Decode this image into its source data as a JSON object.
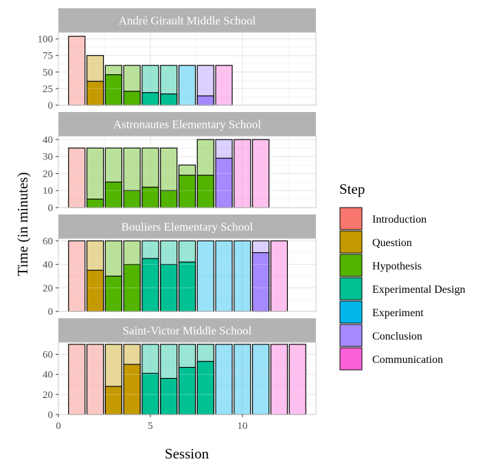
{
  "chart_data": {
    "type": "bar",
    "xlabel": "Session",
    "ylabel": "Time (in minutes)",
    "xlim": [
      0,
      14
    ],
    "x_ticks": [
      0,
      5,
      10
    ],
    "grid": true,
    "legend_title": "Step",
    "legend_position": "right",
    "steps": [
      {
        "name": "Introduction",
        "color": "#F8766D"
      },
      {
        "name": "Question",
        "color": "#C49A00"
      },
      {
        "name": "Hypothesis",
        "color": "#53B400"
      },
      {
        "name": "Experimental Design",
        "color": "#00C094"
      },
      {
        "name": "Experiment",
        "color": "#00B6EB"
      },
      {
        "name": "Conclusion",
        "color": "#A58AFF"
      },
      {
        "name": "Communication",
        "color": "#FB61D7"
      }
    ],
    "panels": [
      {
        "title": "André Girault Middle School",
        "ylim": [
          0,
          110
        ],
        "y_ticks": [
          0,
          25,
          50,
          75,
          100
        ],
        "sessions": [
          {
            "session": 1,
            "total": 104,
            "step": "Introduction",
            "value": 0
          },
          {
            "session": 2,
            "total": 75,
            "step": "Question",
            "value": 36
          },
          {
            "session": 3,
            "total": 60,
            "step": "Hypothesis",
            "value": 46
          },
          {
            "session": 4,
            "total": 60,
            "step": "Hypothesis",
            "value": 21
          },
          {
            "session": 5,
            "total": 60,
            "step": "Experimental Design",
            "value": 19
          },
          {
            "session": 6,
            "total": 60,
            "step": "Experimental Design",
            "value": 17
          },
          {
            "session": 7,
            "total": 60,
            "step": "Experiment",
            "value": 0
          },
          {
            "session": 8,
            "total": 60,
            "step": "Conclusion",
            "value": 14
          },
          {
            "session": 9,
            "total": 60,
            "step": "Communication",
            "value": 0
          }
        ]
      },
      {
        "title": "Astronautes Elementary School",
        "ylim": [
          0,
          42
        ],
        "y_ticks": [
          0,
          10,
          20,
          30,
          40
        ],
        "sessions": [
          {
            "session": 1,
            "total": 35,
            "step": "Introduction",
            "value": 0
          },
          {
            "session": 2,
            "total": 35,
            "step": "Hypothesis",
            "value": 5
          },
          {
            "session": 3,
            "total": 35,
            "step": "Hypothesis",
            "value": 15
          },
          {
            "session": 4,
            "total": 35,
            "step": "Hypothesis",
            "value": 10
          },
          {
            "session": 5,
            "total": 35,
            "step": "Hypothesis",
            "value": 12
          },
          {
            "session": 6,
            "total": 35,
            "step": "Hypothesis",
            "value": 10
          },
          {
            "session": 7,
            "total": 25,
            "step": "Hypothesis",
            "value": 19
          },
          {
            "session": 8,
            "total": 40,
            "step": "Hypothesis",
            "value": 19
          },
          {
            "session": 9,
            "total": 40,
            "step": "Conclusion",
            "value": 29
          },
          {
            "session": 10,
            "total": 40,
            "step": "Communication",
            "value": 0
          },
          {
            "session": 11,
            "total": 40,
            "step": "Communication",
            "value": 0
          }
        ]
      },
      {
        "title": "Bouliers Elementary School",
        "ylim": [
          0,
          62
        ],
        "y_ticks": [
          0,
          20,
          40,
          60
        ],
        "sessions": [
          {
            "session": 1,
            "total": 60,
            "step": "Introduction",
            "value": 0
          },
          {
            "session": 2,
            "total": 60,
            "step": "Question",
            "value": 35
          },
          {
            "session": 3,
            "total": 60,
            "step": "Hypothesis",
            "value": 30
          },
          {
            "session": 4,
            "total": 60,
            "step": "Hypothesis",
            "value": 40
          },
          {
            "session": 5,
            "total": 60,
            "step": "Experimental Design",
            "value": 45
          },
          {
            "session": 6,
            "total": 60,
            "step": "Experimental Design",
            "value": 40
          },
          {
            "session": 7,
            "total": 60,
            "step": "Experimental Design",
            "value": 42
          },
          {
            "session": 8,
            "total": 60,
            "step": "Experiment",
            "value": 0
          },
          {
            "session": 9,
            "total": 60,
            "step": "Experiment",
            "value": 0
          },
          {
            "session": 10,
            "total": 60,
            "step": "Experiment",
            "value": 0
          },
          {
            "session": 11,
            "total": 60,
            "step": "Conclusion",
            "value": 50
          },
          {
            "session": 12,
            "total": 60,
            "step": "Communication",
            "value": 0
          }
        ]
      },
      {
        "title": "Saint-Victor Middle School",
        "ylim": [
          0,
          72
        ],
        "y_ticks": [
          0,
          20,
          40,
          60
        ],
        "sessions": [
          {
            "session": 1,
            "total": 70,
            "step": "Introduction",
            "value": 0
          },
          {
            "session": 2,
            "total": 70,
            "step": "Introduction",
            "value": 0
          },
          {
            "session": 3,
            "total": 70,
            "step": "Question",
            "value": 28
          },
          {
            "session": 4,
            "total": 70,
            "step": "Question",
            "value": 50
          },
          {
            "session": 5,
            "total": 70,
            "step": "Experimental Design",
            "value": 41
          },
          {
            "session": 6,
            "total": 70,
            "step": "Experimental Design",
            "value": 36
          },
          {
            "session": 7,
            "total": 70,
            "step": "Experimental Design",
            "value": 47
          },
          {
            "session": 8,
            "total": 70,
            "step": "Experimental Design",
            "value": 53
          },
          {
            "session": 9,
            "total": 70,
            "step": "Experiment",
            "value": 0
          },
          {
            "session": 10,
            "total": 70,
            "step": "Experiment",
            "value": 0
          },
          {
            "session": 11,
            "total": 70,
            "step": "Experiment",
            "value": 0
          },
          {
            "session": 12,
            "total": 70,
            "step": "Communication",
            "value": 0
          },
          {
            "session": 13,
            "total": 70,
            "step": "Communication",
            "value": 0
          }
        ]
      }
    ]
  }
}
